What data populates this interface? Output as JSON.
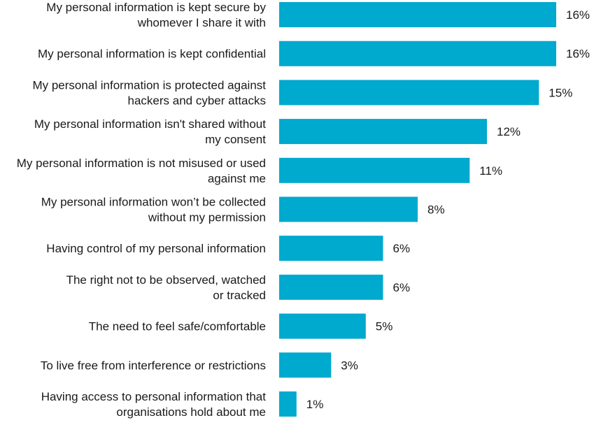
{
  "chart_data": {
    "type": "bar",
    "orientation": "horizontal",
    "categories": [
      [
        "My personal information is kept secure by",
        "whomever I share it with"
      ],
      [
        "My personal information is kept confidential"
      ],
      [
        "My personal information is protected against",
        "hackers and cyber attacks"
      ],
      [
        "My personal information isn't shared without",
        "my consent"
      ],
      [
        "My personal information is not misused or used",
        "against me"
      ],
      [
        "My personal information won’t be collected",
        "without my permission"
      ],
      [
        "Having control of my personal information"
      ],
      [
        "The right not to be observed, watched",
        "or tracked"
      ],
      [
        "The need to feel safe/comfortable"
      ],
      [
        "To live free from interference or restrictions"
      ],
      [
        "Having access to personal information that",
        "organisations hold about me"
      ]
    ],
    "values": [
      16,
      16,
      15,
      12,
      11,
      8,
      6,
      6,
      5,
      3,
      1
    ],
    "value_labels": [
      "16%",
      "16%",
      "15%",
      "12%",
      "11%",
      "8%",
      "6%",
      "6%",
      "5%",
      "3%",
      "1%"
    ],
    "title": "",
    "xlabel": "",
    "ylabel": "",
    "xlim": [
      0,
      16
    ],
    "grid": false,
    "legend": "none",
    "bar_color": "#00a9ce"
  }
}
